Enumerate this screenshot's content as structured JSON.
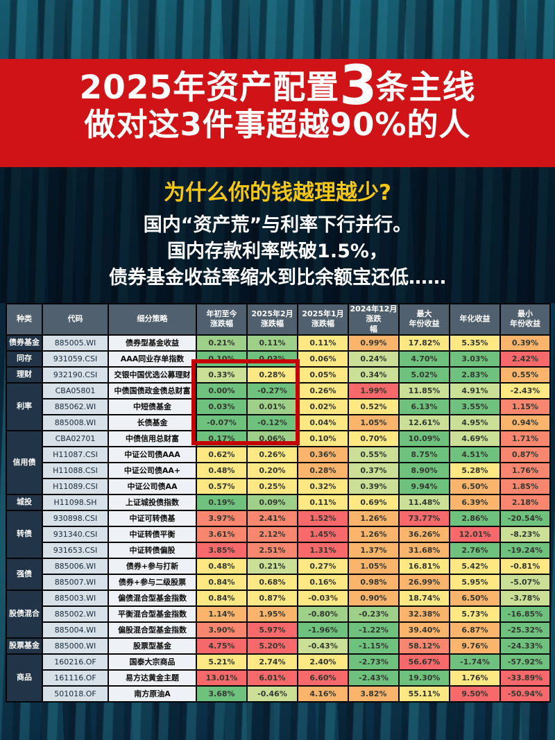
{
  "banner": {
    "line1_prefix": "2025年资产配置",
    "line1_big": "3",
    "line1_suffix": "条主线",
    "line2": "做对这3件事超越90%的人"
  },
  "intro": {
    "title": "为什么你的钱越理越少?",
    "lines": [
      "国内“资产荒”与利率下行并行。",
      "国内存款利率跌破1.5%，",
      "债券基金收益率缩水到比余额宝还低……"
    ]
  },
  "colors": {
    "banner_red": "#d01317",
    "accent_yellow": "#f8c714",
    "highlight_border": "#c40000",
    "header_bg": "#50606e",
    "category_bg": "#223447",
    "heatmap": {
      "g": "#6fc27e",
      "lg": "#9ed08a",
      "yg": "#cbe096",
      "y": "#fde884",
      "o": "#fbb46c",
      "s": "#f9876f",
      "r": "#f8696b"
    }
  },
  "table": {
    "headers": [
      "种类",
      "代码",
      "细分策略",
      "年初至今\n涨跌幅",
      "2025年2月涨跌幅",
      "2025年1月涨跌幅",
      "2024年12月涨跌\n幅",
      "最大\n年份收益",
      "年化收益",
      "最小\n年份收益"
    ],
    "groups": [
      {
        "category": "债券基金",
        "rows": [
          {
            "code": "885005.WI",
            "strategy": "债券型基金收益",
            "values": [
              "0.21%",
              "0.11%",
              "0.11%",
              "0.99%",
              "17.82%",
              "5.35%",
              "0.39%"
            ],
            "colors": [
              "lg",
              "lg",
              "y",
              "o",
              "y",
              "y",
              "o"
            ]
          }
        ]
      },
      {
        "category": "同存",
        "rows": [
          {
            "code": "931059.CSI",
            "strategy": "AAA同业存单指数",
            "values": [
              "0.10%",
              "0.03%",
              "0.06%",
              "0.24%",
              "4.70%",
              "3.03%",
              "2.42%"
            ],
            "colors": [
              "g",
              "g",
              "y",
              "yg",
              "g",
              "g",
              "r"
            ]
          }
        ]
      },
      {
        "category": "理财",
        "rows": [
          {
            "code": "932190.CSI",
            "strategy": "交银中国优选公募理财",
            "values": [
              "0.33%",
              "0.28%",
              "0.05%",
              "0.34%",
              "5.02%",
              "2.83%",
              "0.55%"
            ],
            "colors": [
              "yg",
              "y",
              "y",
              "yg",
              "g",
              "g",
              "o"
            ]
          }
        ]
      },
      {
        "category": "利率",
        "rows": [
          {
            "code": "CBA05801",
            "strategy": "中债国债政金债总财富",
            "values": [
              "0.00%",
              "-0.27%",
              "0.26%",
              "1.99%",
              "11.85%",
              "4.91%",
              "-2.43%"
            ],
            "colors": [
              "g",
              "g",
              "y",
              "r",
              "yg",
              "yg",
              "y"
            ]
          },
          {
            "code": "885062.WI",
            "strategy": "中短债基金",
            "values": [
              "0.03%",
              "0.01%",
              "0.02%",
              "0.52%",
              "6.13%",
              "3.55%",
              "1.15%"
            ],
            "colors": [
              "g",
              "lg",
              "y",
              "y",
              "g",
              "g",
              "s"
            ]
          },
          {
            "code": "885008.WI",
            "strategy": "长债基金",
            "values": [
              "-0.07%",
              "-0.12%",
              "0.04%",
              "1.05%",
              "12.61%",
              "4.95%",
              "0.94%"
            ],
            "colors": [
              "g",
              "g",
              "y",
              "o",
              "yg",
              "yg",
              "o"
            ]
          }
        ]
      },
      {
        "category": "信用债",
        "rows": [
          {
            "code": "CBA02701",
            "strategy": "中债信用总财富",
            "values": [
              "0.17%",
              "0.06%",
              "0.10%",
              "0.70%",
              "10.09%",
              "4.69%",
              "1.71%"
            ],
            "colors": [
              "g",
              "lg",
              "y",
              "y",
              "g",
              "yg",
              "s"
            ]
          },
          {
            "code": "H11087.CSI",
            "strategy": "中证公司债AAA",
            "values": [
              "0.62%",
              "0.26%",
              "0.36%",
              "0.55%",
              "8.75%",
              "4.51%",
              "0.87%"
            ],
            "colors": [
              "y",
              "y",
              "o",
              "yg",
              "g",
              "g",
              "s"
            ]
          },
          {
            "code": "H11088.CSI",
            "strategy": "中证公司债AA+",
            "values": [
              "0.48%",
              "0.20%",
              "0.28%",
              "0.37%",
              "8.90%",
              "5.28%",
              "1.76%"
            ],
            "colors": [
              "y",
              "y",
              "o",
              "yg",
              "g",
              "y",
              "s"
            ]
          },
          {
            "code": "H11089.CSI",
            "strategy": "中证公司债AA",
            "values": [
              "0.57%",
              "0.25%",
              "0.32%",
              "0.39%",
              "9.94%",
              "6.50%",
              "1.85%"
            ],
            "colors": [
              "y",
              "y",
              "y",
              "yg",
              "g",
              "o",
              "s"
            ]
          }
        ]
      },
      {
        "category": "城投",
        "rows": [
          {
            "code": "H11098.SH",
            "strategy": "上证城投债指数",
            "values": [
              "0.19%",
              "0.09%",
              "0.11%",
              "0.69%",
              "11.48%",
              "6.39%",
              "2.18%"
            ],
            "colors": [
              "g",
              "lg",
              "y",
              "y",
              "yg",
              "o",
              "s"
            ]
          }
        ]
      },
      {
        "category": "转债",
        "rows": [
          {
            "code": "930898.CSI",
            "strategy": "中证可转债基",
            "values": [
              "3.97%",
              "2.41%",
              "1.52%",
              "1.26%",
              "73.77%",
              "2.86%",
              "-20.54%"
            ],
            "colors": [
              "s",
              "s",
              "r",
              "o",
              "r",
              "g",
              "g"
            ]
          },
          {
            "code": "931340.CSI",
            "strategy": "中证转债平衡",
            "values": [
              "3.61%",
              "2.12%",
              "1.45%",
              "1.26%",
              "36.26%",
              "12.01%",
              "-8.23%"
            ],
            "colors": [
              "s",
              "s",
              "r",
              "o",
              "o",
              "r",
              "yg"
            ]
          },
          {
            "code": "931653.CSI",
            "strategy": "中证转债偏股",
            "values": [
              "3.85%",
              "2.51%",
              "1.31%",
              "1.37%",
              "31.68%",
              "2.76%",
              "-19.24%"
            ],
            "colors": [
              "r",
              "s",
              "r",
              "o",
              "o",
              "g",
              "g"
            ]
          }
        ]
      },
      {
        "category": "强债",
        "rows": [
          {
            "code": "885006.WI",
            "strategy": "债券+参与打新",
            "values": [
              "0.48%",
              "0.21%",
              "0.27%",
              "1.05%",
              "16.81%",
              "5.42%",
              "-0.81%"
            ],
            "colors": [
              "y",
              "yg",
              "y",
              "o",
              "y",
              "y",
              "y"
            ]
          },
          {
            "code": "885007.WI",
            "strategy": "债券+参与二级股票",
            "values": [
              "0.84%",
              "0.68%",
              "0.16%",
              "0.98%",
              "26.99%",
              "5.95%",
              "-5.07%"
            ],
            "colors": [
              "y",
              "y",
              "y",
              "o",
              "o",
              "y",
              "yg"
            ]
          }
        ]
      },
      {
        "category": "股债混合",
        "rows": [
          {
            "code": "885003.WI",
            "strategy": "偏债混合型基金指数",
            "values": [
              "0.84%",
              "0.87%",
              "-0.03%",
              "0.90%",
              "18.74%",
              "6.50%",
              "-3.78%"
            ],
            "colors": [
              "y",
              "y",
              "y",
              "o",
              "y",
              "o",
              "yg"
            ]
          },
          {
            "code": "885002.WI",
            "strategy": "平衡混合型基金指数",
            "values": [
              "1.14%",
              "1.95%",
              "-0.80%",
              "-0.23%",
              "32.38%",
              "5.73%",
              "-16.85%"
            ],
            "colors": [
              "o",
              "o",
              "lg",
              "lg",
              "o",
              "y",
              "g"
            ]
          },
          {
            "code": "885004.WI",
            "strategy": "偏股混合型基金指数",
            "values": [
              "3.90%",
              "5.97%",
              "-1.96%",
              "-1.22%",
              "39.40%",
              "6.87%",
              "-25.32%"
            ],
            "colors": [
              "s",
              "r",
              "g",
              "g",
              "o",
              "o",
              "g"
            ]
          }
        ]
      },
      {
        "category": "股票基金",
        "rows": [
          {
            "code": "885000.WI",
            "strategy": "股票型基金",
            "values": [
              "4.75%",
              "5.20%",
              "-0.43%",
              "-1.15%",
              "58.12%",
              "9.76%",
              "-24.33%"
            ],
            "colors": [
              "r",
              "r",
              "yg",
              "g",
              "s",
              "o",
              "g"
            ]
          }
        ]
      },
      {
        "category": "商品",
        "rows": [
          {
            "code": "160216.OF",
            "strategy": "国泰大宗商品",
            "values": [
              "5.21%",
              "2.74%",
              "2.40%",
              "-2.73%",
              "56.67%",
              "-1.74%",
              "-57.92%"
            ],
            "colors": [
              "y",
              "y",
              "y",
              "g",
              "r",
              "g",
              "g"
            ]
          },
          {
            "code": "161116.OF",
            "strategy": "易方达黄金主题",
            "values": [
              "13.01%",
              "6.01%",
              "6.60%",
              "-2.43%",
              "19.30%",
              "1.76%",
              "-33.89%"
            ],
            "colors": [
              "r",
              "r",
              "r",
              "g",
              "g",
              "y",
              "r"
            ]
          },
          {
            "code": "501018.OF",
            "strategy": "南方原油A",
            "values": [
              "3.68%",
              "-0.46%",
              "4.16%",
              "3.82%",
              "55.11%",
              "9.50%",
              "-50.94%"
            ],
            "colors": [
              "g",
              "yg",
              "o",
              "o",
              "y",
              "r",
              "r"
            ]
          }
        ]
      }
    ]
  }
}
